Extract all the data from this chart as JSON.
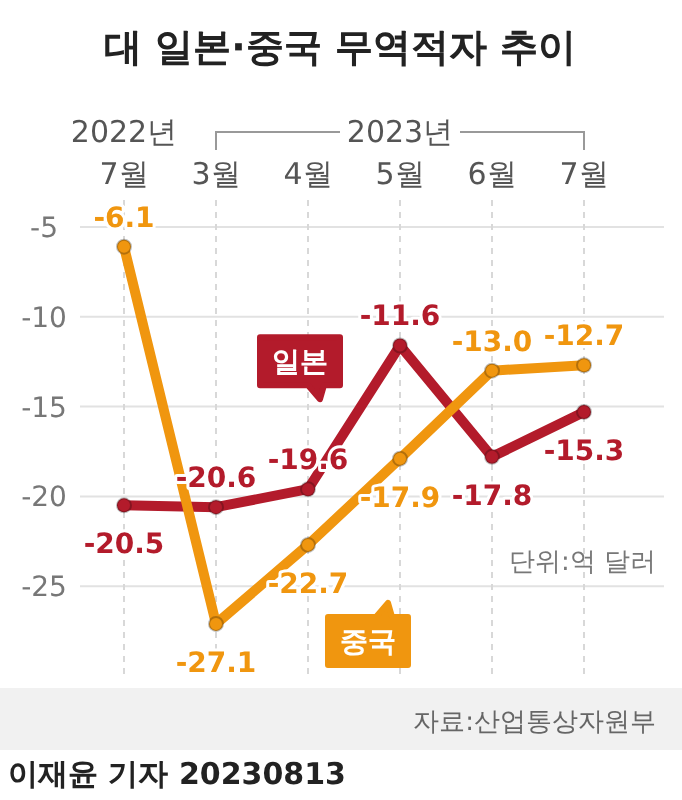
{
  "chart_data": {
    "type": "line",
    "title": "대 일본·중국 무역적자 추이",
    "categories": [
      "7월",
      "3월",
      "4월",
      "5월",
      "6월",
      "7월"
    ],
    "series": [
      {
        "name": "일본",
        "color": "#b31b2b",
        "values": [
          -20.5,
          -20.6,
          -19.6,
          -11.6,
          -17.8,
          -15.3
        ],
        "value_labels": [
          "-20.5",
          "-20.6",
          "-19.6",
          "-11.6",
          "-17.8",
          "-15.3"
        ]
      },
      {
        "name": "중국",
        "color": "#f0960f",
        "values": [
          -6.1,
          -27.1,
          -22.7,
          -17.9,
          -13.0,
          -12.7
        ],
        "value_labels": [
          "-6.1",
          "-27.1",
          "-22.7",
          "-17.9",
          "-13.0",
          "-12.7"
        ]
      }
    ],
    "ylim": [
      -30,
      -3.5
    ],
    "yticks": [
      -5,
      -10,
      -15,
      -20,
      -25
    ],
    "grid": true,
    "marker": "circle",
    "line_style": "solid",
    "annotations": [
      "2022년",
      "2023년",
      "단위:억 달러",
      "자료:산업통상자원부",
      "이재윤 기자 20230813"
    ]
  }
}
